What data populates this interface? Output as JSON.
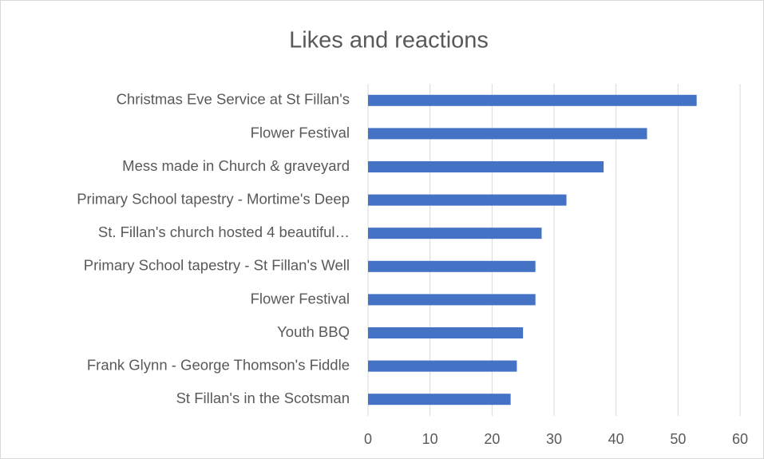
{
  "chart_data": {
    "type": "bar",
    "orientation": "horizontal",
    "title": "Likes and reactions",
    "categories": [
      "Christmas Eve Service at St Fillan's",
      "Flower Festival",
      "Mess made in Church & graveyard",
      "Primary School tapestry - Mortime's Deep",
      "St. Fillan's church hosted 4 beautiful…",
      "Primary School tapestry - St Fillan's Well",
      "Flower Festival",
      "Youth BBQ",
      "Frank Glynn - George Thomson's Fiddle",
      "St Fillan's in the Scotsman"
    ],
    "values": [
      53,
      45,
      38,
      32,
      28,
      27,
      27,
      25,
      24,
      23
    ],
    "color": "#4472c4",
    "xlim": [
      0,
      60
    ],
    "xticks": [
      0,
      10,
      20,
      30,
      40,
      50,
      60
    ],
    "grid": true
  }
}
